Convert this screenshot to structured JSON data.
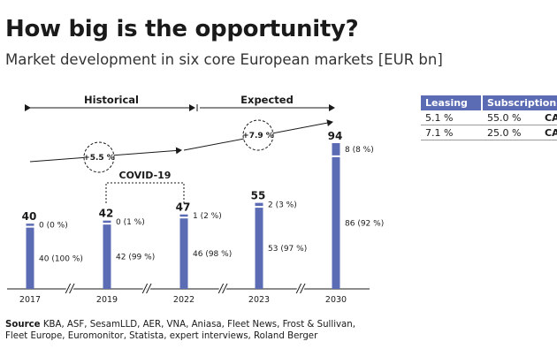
{
  "header": {
    "title": "How big is the opportunity?",
    "subtitle": "Market development in six core European markets [EUR bn]"
  },
  "colors": {
    "bar": "#5c6cb4",
    "text": "#1a1a1a",
    "table_header": "#5c6cb4"
  },
  "periods": {
    "historical": "Historical",
    "expected": "Expected",
    "covid": "COVID-19"
  },
  "growth_badges": {
    "historical": "+5.5 %",
    "expected": "+7.9 %"
  },
  "chart_data": {
    "type": "bar",
    "categories": [
      "2017",
      "2019",
      "2022",
      "2023",
      "2030"
    ],
    "series": [
      {
        "values": [
          40,
          42,
          46,
          53,
          86
        ],
        "labels": [
          "40 (100 %)",
          "42 (99 %)",
          "46 (98 %)",
          "53 (97 %)",
          "86 (92 %)"
        ]
      },
      {
        "values": [
          0,
          0,
          1,
          2,
          8
        ],
        "labels": [
          "0 (0 %)",
          "0 (1 %)",
          "1 (2 %)",
          "2 (3 %)",
          "8 (8 %)"
        ]
      }
    ],
    "totals": [
      40,
      42,
      47,
      55,
      94
    ],
    "axis_break_symbol": "//",
    "ylim": [
      0,
      94
    ]
  },
  "cagr_table": {
    "headers": [
      "Leasing",
      "Subscription"
    ],
    "rows": [
      {
        "leasing": "5.1 %",
        "subscription": "55.0 %",
        "label": "CAGR '"
      },
      {
        "leasing": "7.1 %",
        "subscription": "25.0 %",
        "label": "CAGR '"
      }
    ]
  },
  "source": {
    "label": "Source",
    "text": "KBA, ASF, SesamLLD, AER, VNA, Aniasa, Fleet News, Frost & Sullivan, Fleet Europe, Euromonitor, Statista, expert interviews, Roland Berger"
  }
}
